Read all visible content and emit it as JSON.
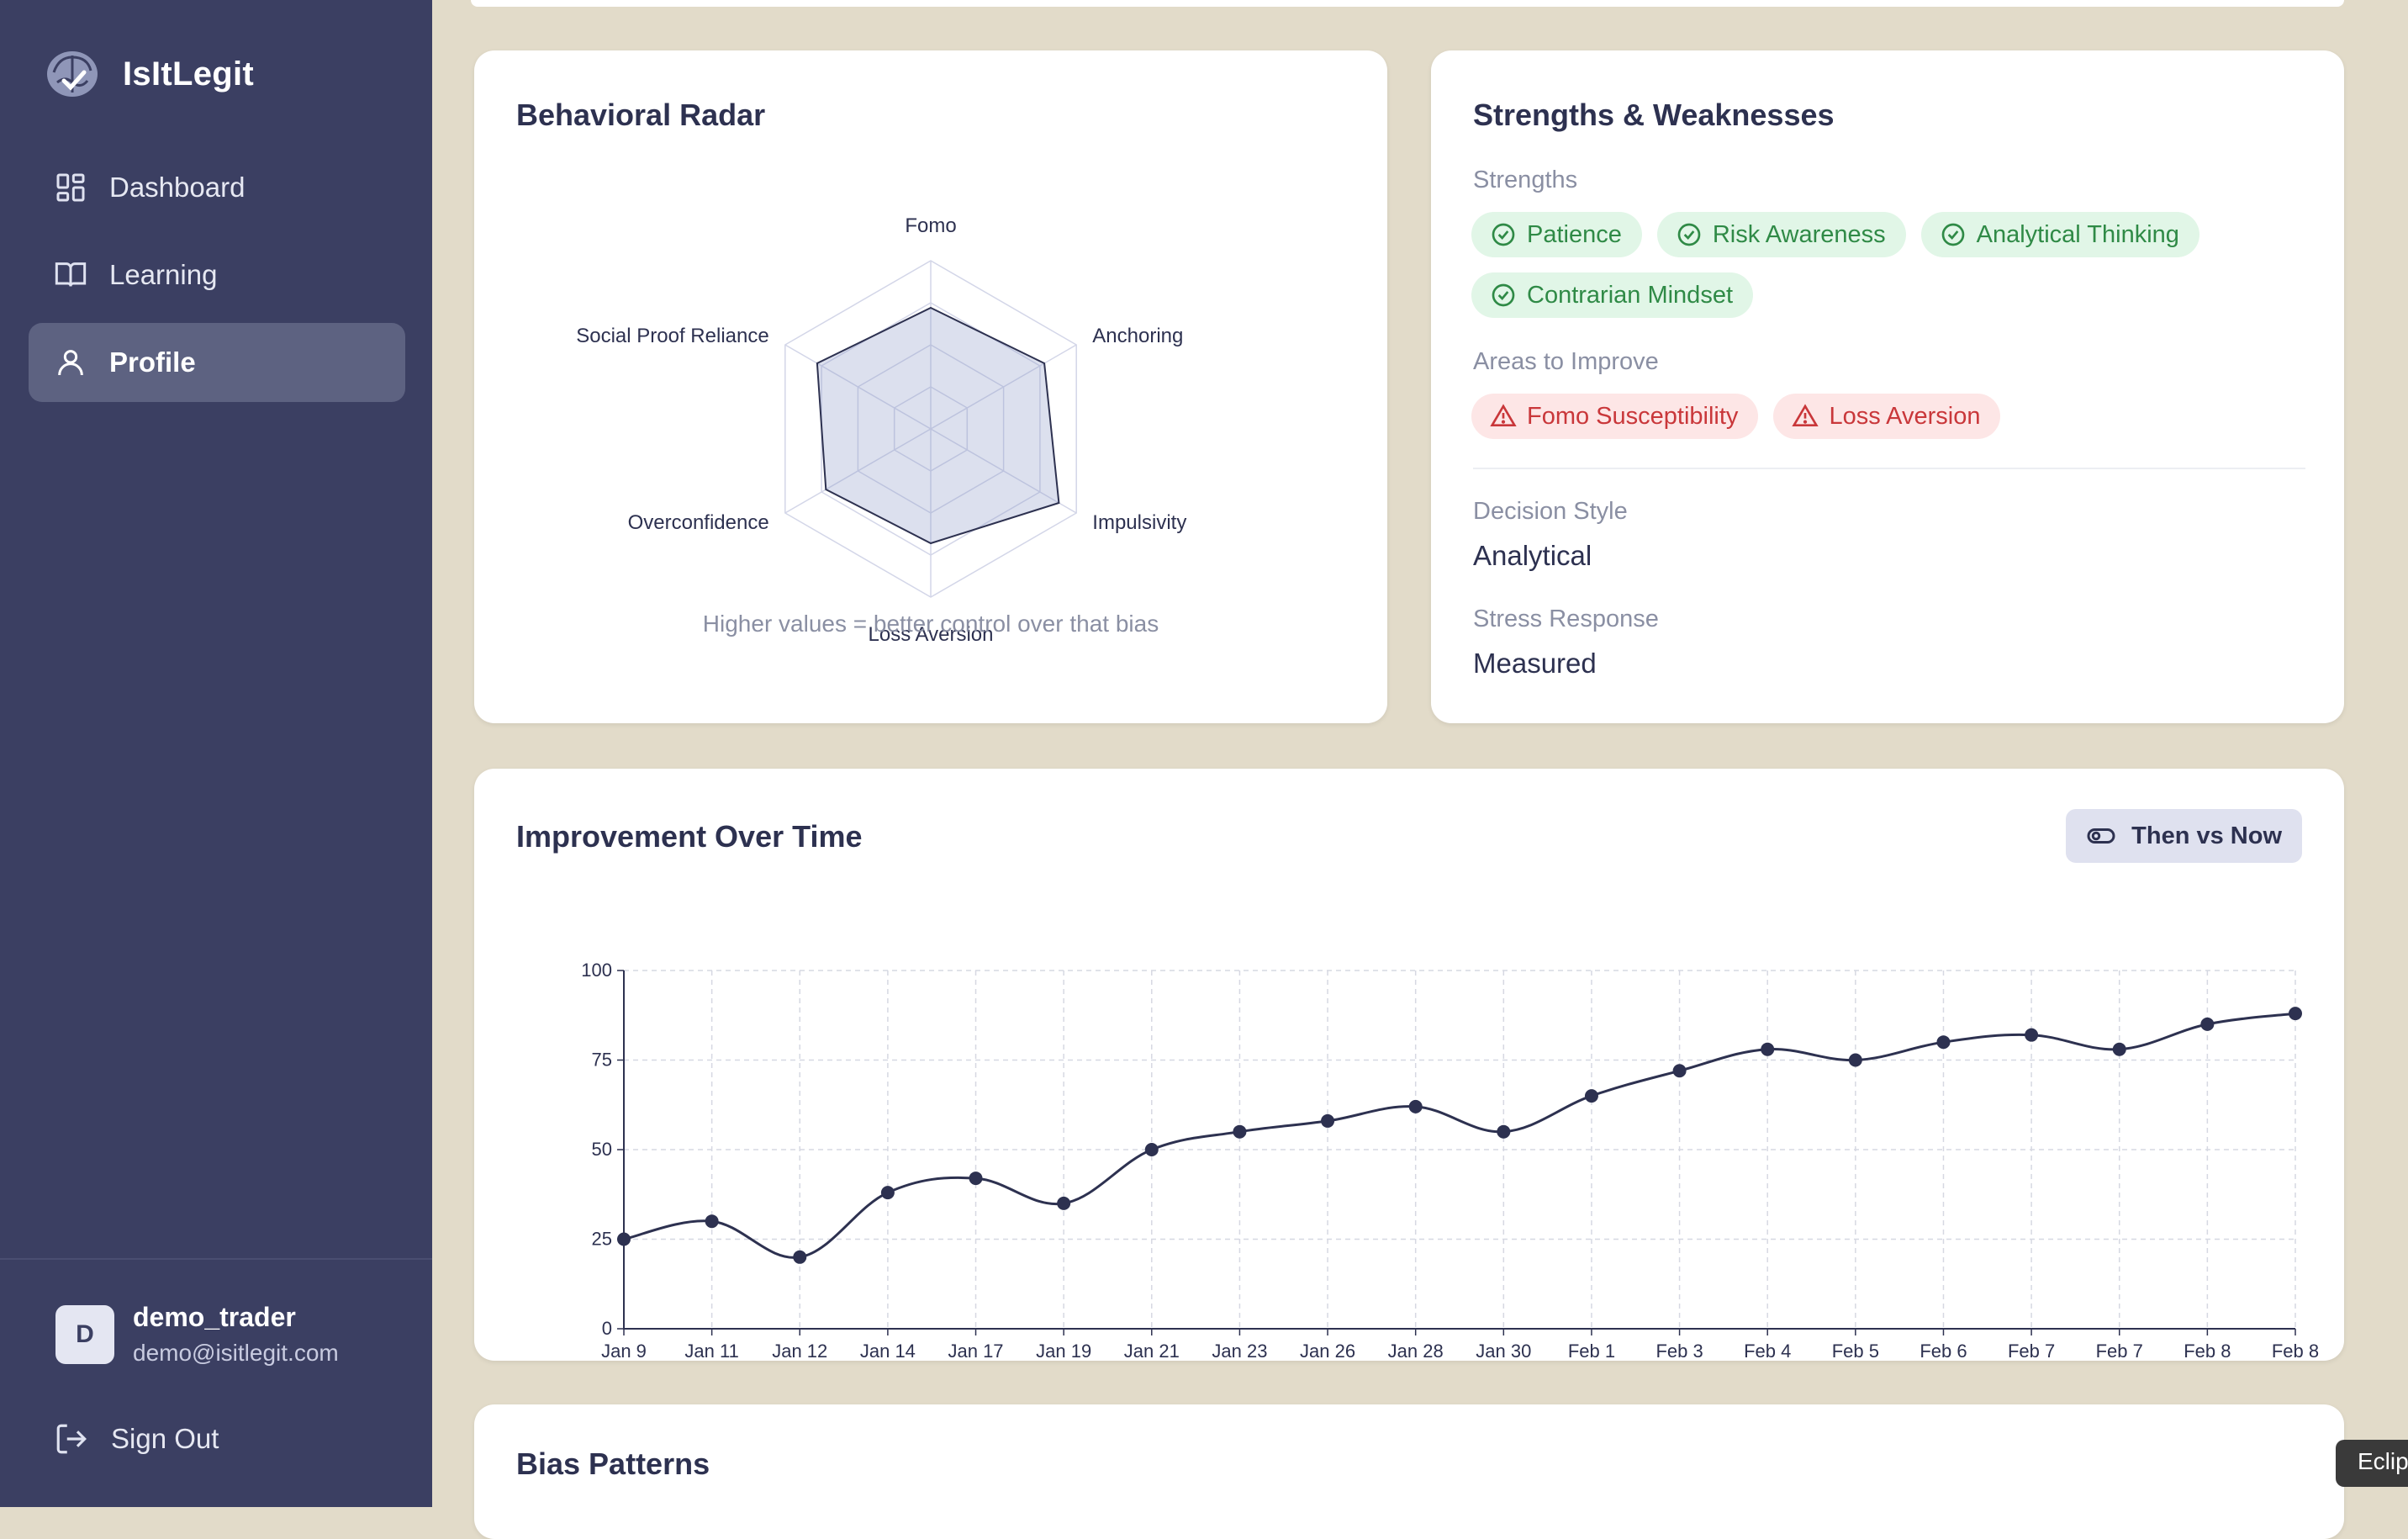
{
  "app": {
    "name": "IsItLegit"
  },
  "sidebar": {
    "items": [
      {
        "label": "Dashboard",
        "icon": "grid-icon"
      },
      {
        "label": "Learning",
        "icon": "book-icon"
      },
      {
        "label": "Profile",
        "icon": "user-icon",
        "active": true
      }
    ],
    "user": {
      "initial": "D",
      "name": "demo_trader",
      "email": "demo@isitlegit.com"
    },
    "signout_label": "Sign Out"
  },
  "radar": {
    "title": "Behavioral Radar",
    "axes": [
      "Fomo",
      "Anchoring",
      "Impulsivity",
      "Loss Aversion",
      "Overconfidence",
      "Social Proof Reliance"
    ],
    "values": [
      72,
      78,
      88,
      68,
      72,
      78
    ],
    "max": 100,
    "caption": "Higher values = better control over that bias"
  },
  "strengths": {
    "title": "Strengths & Weaknesses",
    "strengths_label": "Strengths",
    "strengths": [
      "Patience",
      "Risk Awareness",
      "Analytical Thinking",
      "Contrarian Mindset"
    ],
    "improve_label": "Areas to Improve",
    "improve": [
      "Fomo Susceptibility",
      "Loss Aversion"
    ],
    "decision_style_label": "Decision Style",
    "decision_style": "Analytical",
    "stress_label": "Stress Response",
    "stress": "Measured"
  },
  "improvement": {
    "title": "Improvement Over Time",
    "toggle_label": "Then vs Now"
  },
  "chart_data": {
    "type": "line",
    "title": "Improvement Over Time",
    "categories": [
      "Jan 9",
      "Jan 11",
      "Jan 12",
      "Jan 14",
      "Jan 17",
      "Jan 19",
      "Jan 21",
      "Jan 23",
      "Jan 26",
      "Jan 28",
      "Jan 30",
      "Feb 1",
      "Feb 3",
      "Feb 4",
      "Feb 5",
      "Feb 6",
      "Feb 7",
      "Feb 7",
      "Feb 8",
      "Feb 8"
    ],
    "values": [
      25,
      30,
      20,
      38,
      42,
      35,
      50,
      55,
      58,
      62,
      55,
      65,
      72,
      78,
      75,
      80,
      82,
      78,
      85,
      88
    ],
    "ylim": [
      0,
      100
    ],
    "yticks": [
      0,
      25,
      50,
      75,
      100
    ],
    "grid": true,
    "color": "#2d3150"
  },
  "bias": {
    "title": "Bias Patterns"
  },
  "side_tooltip": "Eclip",
  "colors": {
    "sidebar": "#3b3f62",
    "accent": "#2d3150",
    "good": "#2f8a46",
    "bad": "#c9373a"
  }
}
